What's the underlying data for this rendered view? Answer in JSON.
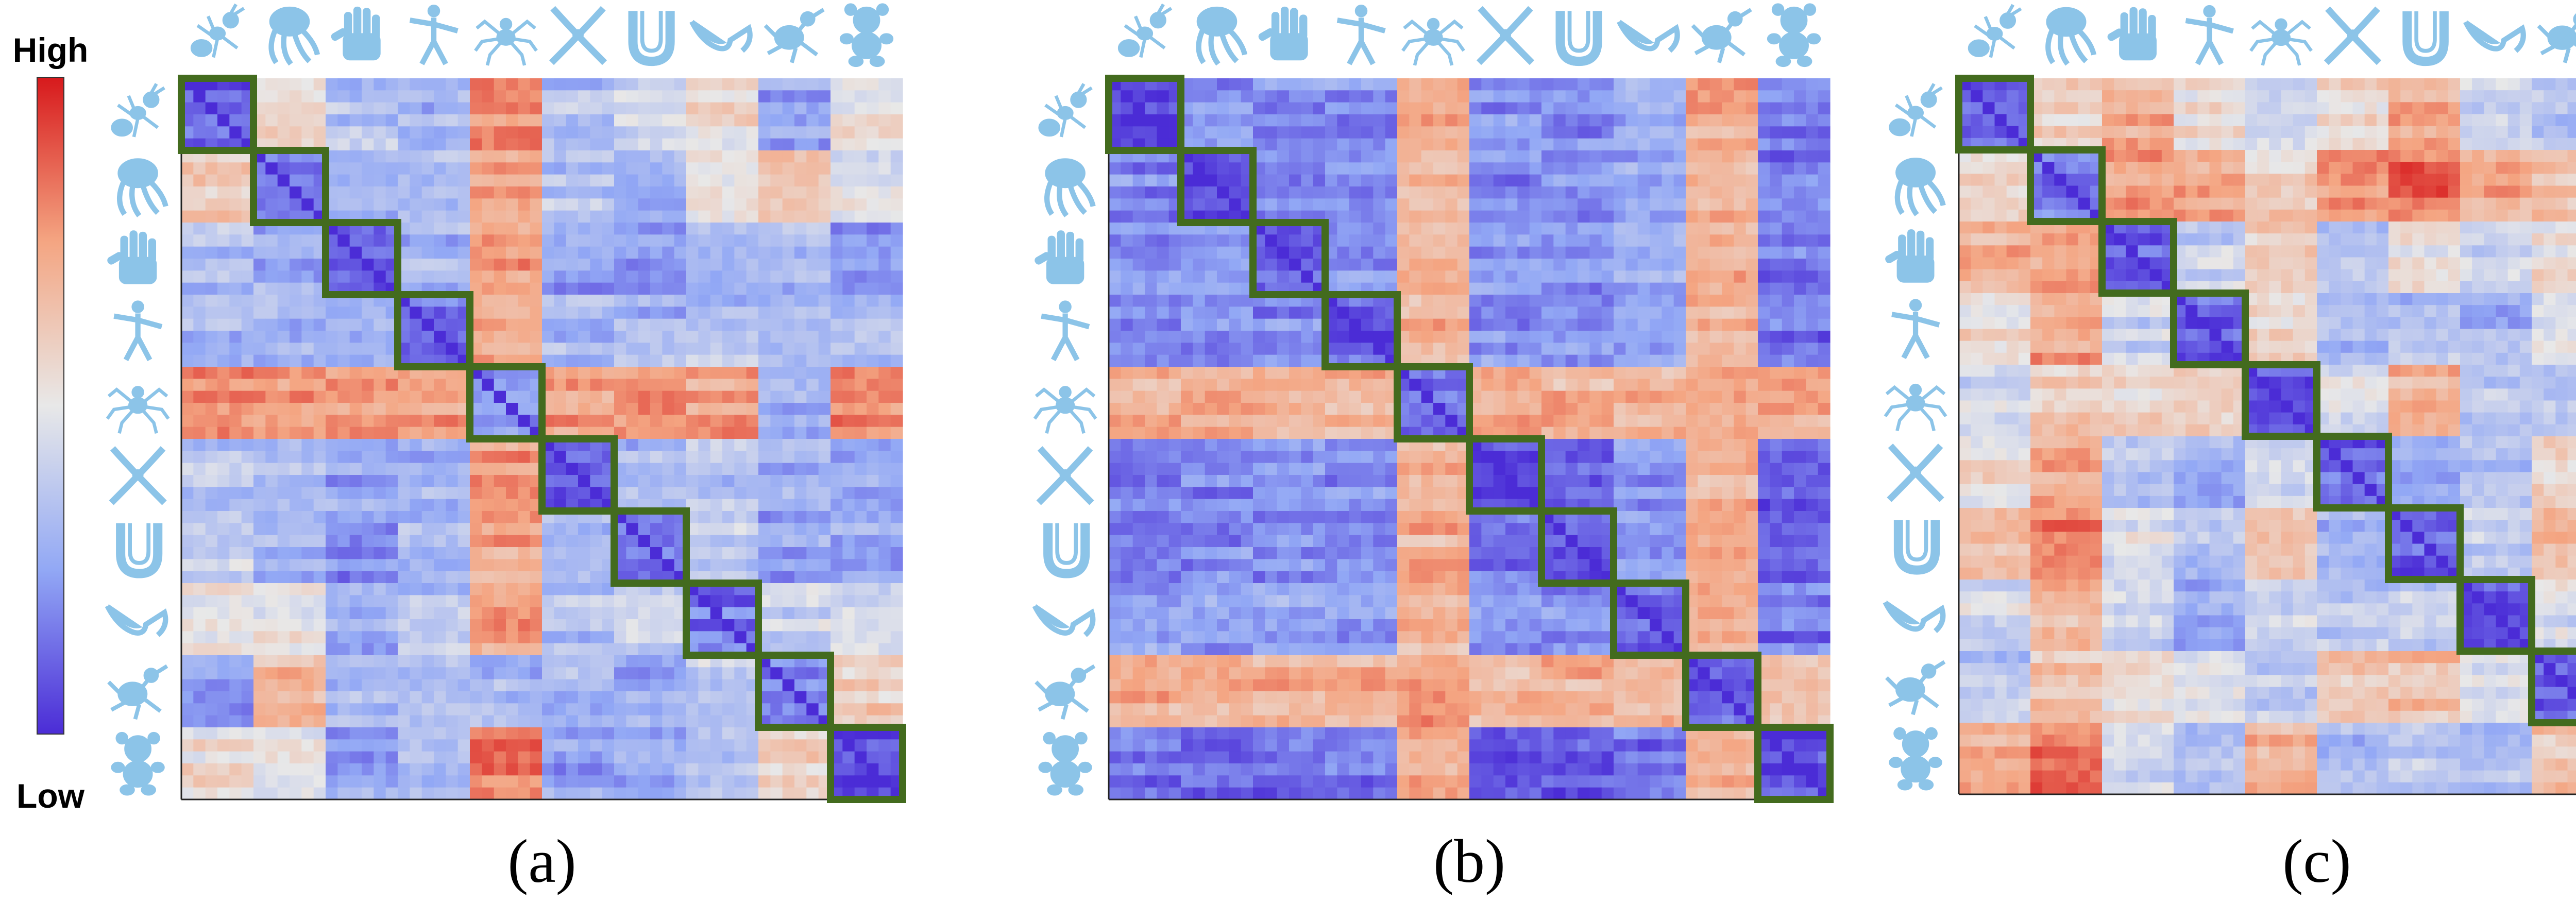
{
  "colorbar": {
    "high_label": "High",
    "low_label": "Low",
    "colors": [
      "#d7191c",
      "#f4a582",
      "#e8e8e8",
      "#92a8f5",
      "#4b2cd6"
    ]
  },
  "shape_icons": [
    "ant-icon",
    "octopus-icon",
    "hand-icon",
    "human-icon",
    "spider-icon",
    "pliers-icon",
    "cup-icon",
    "glasses-icon",
    "bird-icon",
    "teddy-bear-icon"
  ],
  "highlight_color": "#436b1e",
  "icon_color": "#8cc4e8",
  "chart_data": [
    {
      "type": "heatmap",
      "panel_label": "(a)",
      "n_classes": 10,
      "value_range": [
        0,
        1
      ],
      "within_class_value": 0.1,
      "between_class_values": [
        [
          0.1,
          0.6,
          0.35,
          0.3,
          0.8,
          0.35,
          0.4,
          0.55,
          0.25,
          0.55
        ],
        [
          0.6,
          0.15,
          0.3,
          0.3,
          0.75,
          0.35,
          0.3,
          0.5,
          0.65,
          0.5
        ],
        [
          0.35,
          0.3,
          0.15,
          0.3,
          0.75,
          0.25,
          0.2,
          0.3,
          0.3,
          0.25
        ],
        [
          0.3,
          0.3,
          0.3,
          0.15,
          0.75,
          0.3,
          0.3,
          0.35,
          0.3,
          0.3
        ],
        [
          0.8,
          0.75,
          0.75,
          0.75,
          0.2,
          0.75,
          0.75,
          0.75,
          0.3,
          0.8
        ],
        [
          0.35,
          0.35,
          0.25,
          0.3,
          0.75,
          0.1,
          0.3,
          0.35,
          0.3,
          0.25
        ],
        [
          0.4,
          0.3,
          0.2,
          0.3,
          0.75,
          0.3,
          0.1,
          0.4,
          0.25,
          0.25
        ],
        [
          0.55,
          0.5,
          0.3,
          0.35,
          0.75,
          0.35,
          0.4,
          0.15,
          0.4,
          0.4
        ],
        [
          0.25,
          0.65,
          0.3,
          0.3,
          0.3,
          0.3,
          0.25,
          0.4,
          0.2,
          0.6
        ],
        [
          0.55,
          0.5,
          0.25,
          0.3,
          0.8,
          0.25,
          0.25,
          0.4,
          0.6,
          0.05
        ]
      ]
    },
    {
      "type": "heatmap",
      "panel_label": "(b)",
      "n_classes": 10,
      "value_range": [
        0,
        1
      ],
      "within_class_value": 0.05,
      "between_class_values": [
        [
          0.05,
          0.2,
          0.2,
          0.2,
          0.7,
          0.2,
          0.2,
          0.25,
          0.7,
          0.15
        ],
        [
          0.2,
          0.1,
          0.2,
          0.2,
          0.7,
          0.2,
          0.2,
          0.25,
          0.7,
          0.15
        ],
        [
          0.2,
          0.2,
          0.1,
          0.2,
          0.7,
          0.2,
          0.2,
          0.25,
          0.7,
          0.15
        ],
        [
          0.2,
          0.2,
          0.2,
          0.1,
          0.7,
          0.2,
          0.2,
          0.25,
          0.7,
          0.15
        ],
        [
          0.7,
          0.7,
          0.7,
          0.7,
          0.15,
          0.7,
          0.7,
          0.7,
          0.75,
          0.7
        ],
        [
          0.2,
          0.2,
          0.2,
          0.2,
          0.7,
          0.05,
          0.15,
          0.2,
          0.7,
          0.1
        ],
        [
          0.2,
          0.2,
          0.2,
          0.2,
          0.7,
          0.15,
          0.1,
          0.2,
          0.7,
          0.1
        ],
        [
          0.25,
          0.25,
          0.25,
          0.25,
          0.7,
          0.2,
          0.2,
          0.1,
          0.7,
          0.15
        ],
        [
          0.7,
          0.7,
          0.7,
          0.7,
          0.75,
          0.7,
          0.7,
          0.7,
          0.1,
          0.7
        ],
        [
          0.15,
          0.15,
          0.15,
          0.15,
          0.7,
          0.1,
          0.1,
          0.15,
          0.7,
          0.05
        ]
      ]
    },
    {
      "type": "heatmap",
      "panel_label": "(c)",
      "n_classes": 10,
      "value_range": [
        0,
        1
      ],
      "within_class_value": 0.1,
      "between_class_values": [
        [
          0.1,
          0.6,
          0.7,
          0.55,
          0.45,
          0.55,
          0.7,
          0.45,
          0.35,
          0.7
        ],
        [
          0.6,
          0.15,
          0.75,
          0.75,
          0.6,
          0.75,
          0.85,
          0.7,
          0.65,
          0.85
        ],
        [
          0.7,
          0.75,
          0.1,
          0.4,
          0.6,
          0.35,
          0.5,
          0.4,
          0.55,
          0.45
        ],
        [
          0.55,
          0.75,
          0.4,
          0.1,
          0.55,
          0.3,
          0.35,
          0.3,
          0.5,
          0.35
        ],
        [
          0.45,
          0.6,
          0.6,
          0.55,
          0.1,
          0.45,
          0.7,
          0.4,
          0.35,
          0.7
        ],
        [
          0.55,
          0.75,
          0.35,
          0.3,
          0.45,
          0.1,
          0.3,
          0.35,
          0.6,
          0.3
        ],
        [
          0.7,
          0.85,
          0.5,
          0.35,
          0.7,
          0.3,
          0.1,
          0.4,
          0.65,
          0.4
        ],
        [
          0.45,
          0.7,
          0.4,
          0.3,
          0.4,
          0.35,
          0.4,
          0.1,
          0.45,
          0.35
        ],
        [
          0.35,
          0.65,
          0.55,
          0.5,
          0.35,
          0.6,
          0.65,
          0.45,
          0.1,
          0.65
        ],
        [
          0.7,
          0.85,
          0.45,
          0.35,
          0.7,
          0.3,
          0.4,
          0.35,
          0.65,
          0.1
        ]
      ]
    }
  ]
}
